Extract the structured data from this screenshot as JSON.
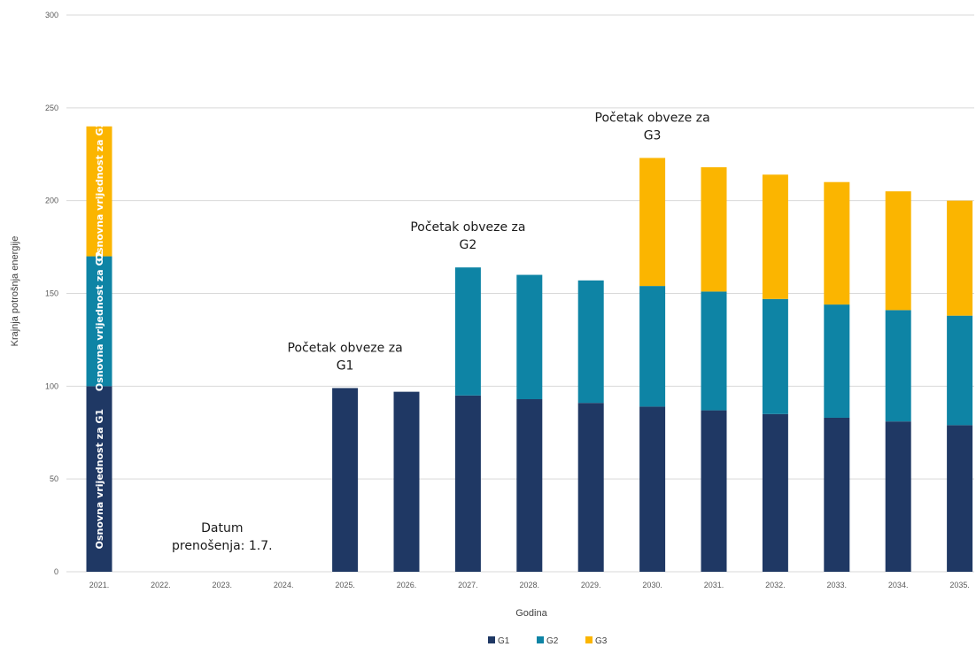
{
  "chart_data": {
    "type": "bar",
    "stacked": true,
    "title": "",
    "xlabel": "Godina",
    "ylabel": "Krajnja potrošnja energije",
    "ylim": [
      0,
      300
    ],
    "yticks": [
      "0",
      "50",
      "100",
      "150",
      "200",
      "250",
      "300"
    ],
    "grid": true,
    "legend_position": "bottom",
    "categories": [
      "2021.",
      "2022.",
      "2023.",
      "2024.",
      "2025.",
      "2026.",
      "2027.",
      "2028.",
      "2029.",
      "2030.",
      "2031.",
      "2032.",
      "2033.",
      "2034.",
      "2035."
    ],
    "series": [
      {
        "name": "G1",
        "color": "#1f3864",
        "values": [
          100,
          0,
          0,
          0,
          99,
          97,
          95,
          93,
          91,
          89,
          87,
          85,
          83,
          81,
          79
        ]
      },
      {
        "name": "G2",
        "color": "#0e84a5",
        "values": [
          70,
          0,
          0,
          0,
          0,
          0,
          69,
          67,
          66,
          65,
          64,
          62,
          61,
          60,
          59
        ]
      },
      {
        "name": "G3",
        "color": "#fbb500",
        "values": [
          70,
          0,
          0,
          0,
          0,
          0,
          0,
          0,
          0,
          69,
          67,
          67,
          66,
          64,
          62
        ]
      }
    ],
    "bar_labels": [
      {
        "category": "2021.",
        "series": "G1",
        "text": "Osnovna vrijednost za G1"
      },
      {
        "category": "2021.",
        "series": "G2",
        "text": "Osnovna vrijednost za G2"
      },
      {
        "category": "2021.",
        "series": "G3",
        "text": "Osnovna vrijednost za G3"
      }
    ],
    "annotations": [
      {
        "lines": [
          "Datum",
          "prenošenja: 1.7."
        ],
        "category": "2023.",
        "y": 12
      },
      {
        "lines": [
          "Početak obveze za",
          "G1"
        ],
        "category": "2025.",
        "y": 109
      },
      {
        "lines": [
          "Početak obveze za",
          "G2"
        ],
        "category": "2027.",
        "y": 174
      },
      {
        "lines": [
          "Početak obveze za",
          "G3"
        ],
        "category": "2030.",
        "y": 233
      }
    ]
  }
}
